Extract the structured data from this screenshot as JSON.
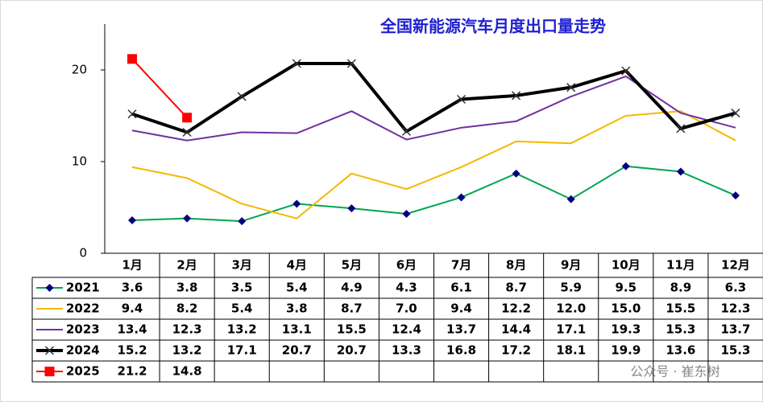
{
  "chart_data": {
    "type": "line",
    "title": "全国新能源汽车月度出口量走势",
    "categories": [
      "1月",
      "2月",
      "3月",
      "4月",
      "5月",
      "6月",
      "7月",
      "8月",
      "9月",
      "10月",
      "11月",
      "12月"
    ],
    "series": [
      {
        "name": "2021",
        "color": "#00a650",
        "values": [
          3.6,
          3.8,
          3.5,
          5.4,
          4.9,
          4.3,
          6.1,
          8.7,
          5.9,
          9.5,
          8.9,
          6.3
        ],
        "value_labels": [
          "3.6",
          "3.8",
          "3.5",
          "5.4",
          "4.9",
          "4.3",
          "6.1",
          "8.7",
          "5.9",
          "9.5",
          "8.9",
          "6.3"
        ]
      },
      {
        "name": "2022",
        "color": "#f5b800",
        "values": [
          9.4,
          8.2,
          5.4,
          3.8,
          8.7,
          7.0,
          9.4,
          12.2,
          12.0,
          15.0,
          15.5,
          12.3
        ],
        "value_labels": [
          "9.4",
          "8.2",
          "5.4",
          "3.8",
          "8.7",
          "7.0",
          "9.4",
          "12.2",
          "12.0",
          "15.0",
          "15.5",
          "12.3"
        ]
      },
      {
        "name": "2023",
        "color": "#7030a0",
        "values": [
          13.4,
          12.3,
          13.2,
          13.1,
          15.5,
          12.4,
          13.7,
          14.4,
          17.1,
          19.3,
          15.3,
          13.7
        ],
        "value_labels": [
          "13.4",
          "12.3",
          "13.2",
          "13.1",
          "15.5",
          "12.4",
          "13.7",
          "14.4",
          "17.1",
          "19.3",
          "15.3",
          "13.7"
        ]
      },
      {
        "name": "2024",
        "color": "#000000",
        "values": [
          15.2,
          13.2,
          17.1,
          20.7,
          20.7,
          13.3,
          16.8,
          17.2,
          18.1,
          19.9,
          13.6,
          15.3
        ],
        "value_labels": [
          "15.2",
          "13.2",
          "17.1",
          "20.7",
          "20.7",
          "13.3",
          "16.8",
          "17.2",
          "18.1",
          "19.9",
          "13.6",
          "15.3"
        ]
      },
      {
        "name": "2025",
        "color": "#ff0000",
        "values": [
          21.2,
          14.8,
          null,
          null,
          null,
          null,
          null,
          null,
          null,
          null,
          null,
          null
        ],
        "value_labels": [
          "21.2",
          "14.8",
          null,
          null,
          null,
          null,
          null,
          null,
          null,
          null,
          null,
          null
        ]
      }
    ],
    "ylim": [
      0,
      25
    ],
    "yticks": [
      0,
      10,
      20
    ],
    "grid": false,
    "watermark": "公众号 · 崔东树"
  }
}
